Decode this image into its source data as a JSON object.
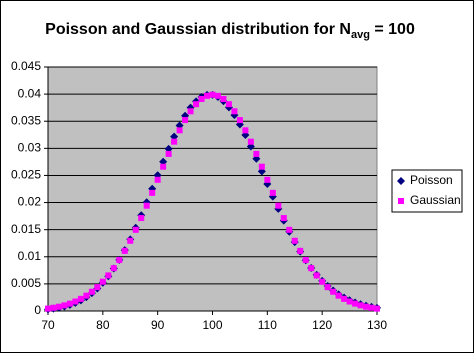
{
  "chart_data": {
    "type": "scatter",
    "title": "Poisson and Gaussian distribution for N",
    "title_sub": "avg",
    "title_end": " = 100",
    "x": [
      70,
      71,
      72,
      73,
      74,
      75,
      76,
      77,
      78,
      79,
      80,
      81,
      82,
      83,
      84,
      85,
      86,
      87,
      88,
      89,
      90,
      91,
      92,
      93,
      94,
      95,
      96,
      97,
      98,
      99,
      100,
      101,
      102,
      103,
      104,
      105,
      106,
      107,
      108,
      109,
      110,
      111,
      112,
      113,
      114,
      115,
      116,
      117,
      118,
      119,
      120,
      121,
      122,
      123,
      124,
      125,
      126,
      127,
      128,
      129,
      130
    ],
    "series": [
      {
        "name": "Poisson",
        "color": "#000080",
        "marker": "diamond",
        "values": [
          0.00031,
          0.00044,
          0.00061,
          0.00083,
          0.00112,
          0.0015,
          0.00197,
          0.00256,
          0.00329,
          0.00416,
          0.0052,
          0.00642,
          0.00783,
          0.00943,
          0.01123,
          0.01321,
          0.01536,
          0.01765,
          0.02006,
          0.02254,
          0.02504,
          0.02752,
          0.02991,
          0.03216,
          0.03421,
          0.03601,
          0.03751,
          0.03867,
          0.03946,
          0.03986,
          0.03986,
          0.03946,
          0.03869,
          0.03756,
          0.03612,
          0.0344,
          0.03245,
          0.03033,
          0.02808,
          0.02576,
          0.02342,
          0.0211,
          0.01884,
          0.01667,
          0.01462,
          0.01271,
          0.01096,
          0.00937,
          0.00794,
          0.00667,
          0.00556,
          0.0046,
          0.00377,
          0.00306,
          0.00247,
          0.00198,
          0.00157,
          0.00124,
          0.00097,
          0.00075,
          0.00058
        ]
      },
      {
        "name": "Gaussian",
        "color": "#ff00ff",
        "marker": "square",
        "values": [
          0.00044,
          0.0006,
          0.00079,
          0.00104,
          0.00136,
          0.00175,
          0.00224,
          0.00283,
          0.00355,
          0.0044,
          0.0054,
          0.00656,
          0.0079,
          0.0094,
          0.01109,
          0.01295,
          0.01497,
          0.01714,
          0.01942,
          0.02179,
          0.0242,
          0.02661,
          0.02897,
          0.03123,
          0.03332,
          0.03521,
          0.03683,
          0.03814,
          0.0391,
          0.03969,
          0.03989,
          0.03969,
          0.0391,
          0.03814,
          0.03683,
          0.03521,
          0.03332,
          0.03123,
          0.02897,
          0.02661,
          0.0242,
          0.02179,
          0.01942,
          0.01714,
          0.01497,
          0.01295,
          0.01109,
          0.0094,
          0.0079,
          0.00656,
          0.0054,
          0.0044,
          0.00355,
          0.00283,
          0.00224,
          0.00175,
          0.00136,
          0.00104,
          0.00079,
          0.0006,
          0.00044
        ]
      }
    ],
    "xlim": [
      70,
      130
    ],
    "xticks": [
      70,
      80,
      90,
      100,
      110,
      120,
      130
    ],
    "ylim": [
      0,
      0.045
    ],
    "yticks": [
      0,
      0.005,
      0.01,
      0.015,
      0.02,
      0.025,
      0.03,
      0.035,
      0.04,
      0.045
    ],
    "grid": true,
    "plot_background": "#c0c0c0",
    "legend": "right"
  }
}
